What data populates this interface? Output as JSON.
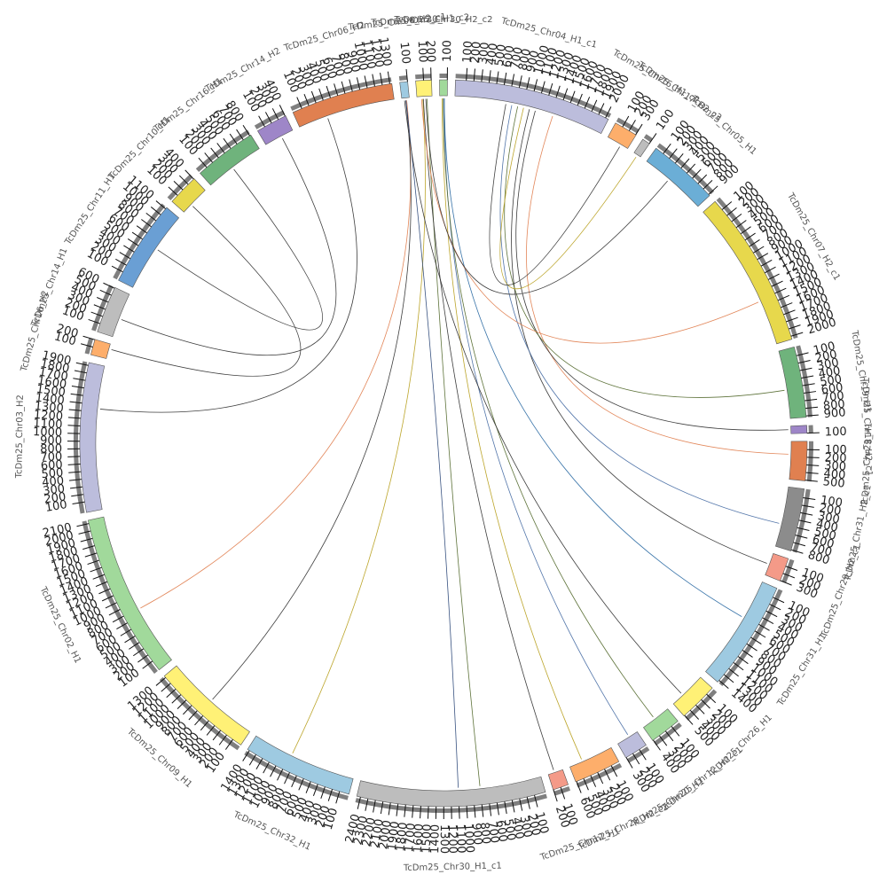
{
  "diagram": {
    "type": "circos",
    "chromosomes": [
      {
        "id": "c0",
        "label": "TcDm25_Chr30_H2_c2",
        "size": 100,
        "color": "#a1d99b",
        "ticks": [
          100
        ]
      },
      {
        "id": "c1",
        "label": "TcDm25_Chr04_H1_c1",
        "size": 2000,
        "color": "#bcbddc",
        "ticks": [
          100,
          200,
          300,
          400,
          500,
          600,
          700,
          800,
          900,
          1000,
          1100,
          1200,
          1300,
          1400,
          1500,
          1600,
          1700,
          1800,
          1900,
          2000
        ]
      },
      {
        "id": "c2",
        "label": "TcDm25_Chr16_H1_c2",
        "size": 300,
        "color": "#fdae6b",
        "ticks": [
          100,
          200,
          300
        ]
      },
      {
        "id": "c3",
        "label": "TcDm25_Chr17_H2_c3",
        "size": 100,
        "color": "#bdbdbd",
        "ticks": [
          100
        ]
      },
      {
        "id": "c4",
        "label": "TcDm25_Chr05_H1",
        "size": 900,
        "color": "#6baed6",
        "ticks": [
          100,
          200,
          300,
          400,
          500,
          600,
          700,
          800,
          900
        ]
      },
      {
        "id": "c5",
        "label": "TcDm25_Chr07_H2_c1",
        "size": 2000,
        "color": "#e7d84c",
        "ticks": [
          100,
          200,
          300,
          400,
          500,
          600,
          700,
          800,
          900,
          1000,
          1100,
          1200,
          1300,
          1400,
          1500,
          1600,
          1700,
          1800,
          1900,
          2000
        ]
      },
      {
        "id": "c6",
        "label": "TcDm25_Chr19_H1",
        "size": 900,
        "color": "#6fb37c",
        "ticks": [
          100,
          200,
          300,
          400,
          500,
          600,
          700,
          800,
          900
        ]
      },
      {
        "id": "c7",
        "label": "TcDm25_Chr18_H2_c1",
        "size": 100,
        "color": "#9e86c8",
        "ticks": [
          100
        ]
      },
      {
        "id": "c8",
        "label": "TcDm25_Chr23_H1",
        "size": 500,
        "color": "#e08050",
        "ticks": [
          100,
          200,
          300,
          400,
          500
        ]
      },
      {
        "id": "c9",
        "label": "TcDm25_Chr31_H2_c1",
        "size": 800,
        "color": "#8c8c8c",
        "ticks": [
          100,
          200,
          300,
          400,
          500,
          600,
          700,
          800
        ]
      },
      {
        "id": "c10",
        "label": "TcDm25_Chr29_H2_c1",
        "size": 300,
        "color": "#f49a88",
        "ticks": [
          100,
          200,
          300
        ]
      },
      {
        "id": "c11",
        "label": "TcDm25_Chr31_H1",
        "size": 1400,
        "color": "#9ecae1",
        "ticks": [
          100,
          200,
          300,
          400,
          500,
          600,
          700,
          800,
          900,
          1000,
          1100,
          1200,
          1300,
          1400
        ]
      },
      {
        "id": "c12",
        "label": "TcDm25_Chr26_H1",
        "size": 500,
        "color": "#fff176",
        "ticks": [
          100,
          200,
          300,
          400,
          500
        ]
      },
      {
        "id": "c13",
        "label": "TcDm25_Chr12_H2_c1",
        "size": 400,
        "color": "#a1d99b",
        "ticks": [
          100,
          200,
          300,
          400
        ]
      },
      {
        "id": "c14",
        "label": "TcDm25_Chr20_H1",
        "size": 300,
        "color": "#bcbddc",
        "ticks": [
          100,
          200,
          300
        ]
      },
      {
        "id": "c15",
        "label": "TcDm25_Chr28_H2_c2",
        "size": 600,
        "color": "#fdae6b",
        "ticks": [
          100,
          200,
          300,
          400,
          500,
          600
        ]
      },
      {
        "id": "c16",
        "label": "TcDm25_Chr12_H1",
        "size": 200,
        "color": "#f49a88",
        "ticks": [
          100,
          200
        ]
      },
      {
        "id": "c17",
        "label": "TcDm25_Chr30_H1_c1",
        "size": 2400,
        "color": "#bdbdbd",
        "ticks": [
          100,
          200,
          300,
          400,
          500,
          600,
          700,
          800,
          900,
          1000,
          1100,
          1200,
          1300,
          1400,
          1500,
          1600,
          1700,
          1800,
          1900,
          2000,
          2100,
          2200,
          2300,
          2400
        ]
      },
      {
        "id": "c18",
        "label": "TcDm25_Chr32_H1",
        "size": 1400,
        "color": "#9ecae1",
        "ticks": [
          100,
          200,
          300,
          400,
          500,
          600,
          700,
          800,
          900,
          1000,
          1100,
          1200,
          1300,
          1400
        ]
      },
      {
        "id": "c19",
        "label": "TcDm25_Chr09_H1",
        "size": 1300,
        "color": "#fff176",
        "ticks": [
          100,
          200,
          300,
          400,
          500,
          600,
          700,
          800,
          900,
          1000,
          1100,
          1200,
          1300
        ]
      },
      {
        "id": "c20",
        "label": "TcDm25_Chr02_H1",
        "size": 2100,
        "color": "#a1d99b",
        "ticks": [
          100,
          200,
          300,
          400,
          500,
          600,
          700,
          800,
          900,
          1000,
          1100,
          1200,
          1300,
          1400,
          1500,
          1600,
          1700,
          1800,
          1900,
          2000,
          2100
        ]
      },
      {
        "id": "c21",
        "label": "TcDm25_Chr03_H2",
        "size": 1900,
        "color": "#bcbddc",
        "ticks": [
          100,
          200,
          300,
          400,
          500,
          600,
          700,
          800,
          900,
          1000,
          1100,
          1200,
          1300,
          1400,
          1500,
          1600,
          1700,
          1800,
          1900
        ]
      },
      {
        "id": "c22",
        "label": "TcDm25_Chr16_H2",
        "size": 200,
        "color": "#fdae6b",
        "ticks": [
          100,
          200
        ]
      },
      {
        "id": "c23",
        "label": "TcDm25_Chr14_H1",
        "size": 600,
        "color": "#bdbdbd",
        "ticks": [
          100,
          200,
          300,
          400,
          500,
          600
        ]
      },
      {
        "id": "c24",
        "label": "TcDm25_Chr11_H1",
        "size": 1100,
        "color": "#6a9fd4",
        "ticks": [
          100,
          200,
          300,
          400,
          500,
          600,
          700,
          800,
          900,
          1000,
          1100
        ]
      },
      {
        "id": "c25",
        "label": "TcDm25_Chr10_H1",
        "size": 400,
        "color": "#e7d84c",
        "ticks": [
          100,
          200,
          300,
          400
        ]
      },
      {
        "id": "c26",
        "label": "TcDm25_Chr16_H1",
        "size": 800,
        "color": "#6fb37c",
        "ticks": [
          100,
          200,
          300,
          400,
          500,
          600,
          700,
          800
        ]
      },
      {
        "id": "c27",
        "label": "TcDm25_Chr14_H2",
        "size": 400,
        "color": "#9e86c8",
        "ticks": [
          100,
          200,
          300,
          400
        ]
      },
      {
        "id": "c28",
        "label": "TcDm25_Chr06_H2",
        "size": 1300,
        "color": "#e08050",
        "ticks": [
          100,
          200,
          300,
          400,
          500,
          600,
          700,
          800,
          900,
          1000,
          1100,
          1200,
          1300
        ]
      },
      {
        "id": "c29",
        "label": "TcDm25_Chr06_H2_c1",
        "size": 100,
        "color": "#9ecae1",
        "ticks": [
          100
        ]
      },
      {
        "id": "c30",
        "label": "TcDm25_Chr30_H1_c2",
        "size": 200,
        "color": "#fff176",
        "ticks": [
          100,
          200
        ]
      }
    ],
    "links": [
      {
        "from": "c28",
        "to": "c21",
        "color": "#333333"
      },
      {
        "from": "c27",
        "to": "c23",
        "color": "#333333"
      },
      {
        "from": "c26",
        "to": "c24",
        "color": "#333333"
      },
      {
        "from": "c25",
        "to": "c22",
        "color": "#333333"
      },
      {
        "from": "c29",
        "to": "c20",
        "color": "#e08050"
      },
      {
        "from": "c29",
        "to": "c19",
        "color": "#333333"
      },
      {
        "from": "c30",
        "to": "c18",
        "color": "#b8a020"
      },
      {
        "from": "c30",
        "to": "c17",
        "color": "#556b2f"
      },
      {
        "from": "c29",
        "to": "c17",
        "color": "#2e4a7a"
      },
      {
        "from": "c30",
        "to": "c16",
        "color": "#333333"
      },
      {
        "from": "c0",
        "to": "c15",
        "color": "#b8a020"
      },
      {
        "from": "c0",
        "to": "c14",
        "color": "#4a6fa5"
      },
      {
        "from": "c0",
        "to": "c13",
        "color": "#556b2f"
      },
      {
        "from": "c29",
        "to": "c12",
        "color": "#333333"
      },
      {
        "from": "c0",
        "to": "c11",
        "color": "#2e6da4"
      },
      {
        "from": "c1",
        "to": "c10",
        "color": "#333333"
      },
      {
        "from": "c1",
        "to": "c9",
        "color": "#4a6fa5"
      },
      {
        "from": "c1",
        "to": "c8",
        "color": "#e08050"
      },
      {
        "from": "c1",
        "to": "c7",
        "color": "#333333"
      },
      {
        "from": "c1",
        "to": "c6",
        "color": "#556b2f"
      },
      {
        "from": "c30",
        "to": "c5",
        "color": "#e08050"
      },
      {
        "from": "c30",
        "to": "c4",
        "color": "#333333"
      },
      {
        "from": "c1",
        "to": "c3",
        "color": "#b8a020"
      },
      {
        "from": "c1",
        "to": "c2",
        "color": "#333333"
      }
    ]
  }
}
